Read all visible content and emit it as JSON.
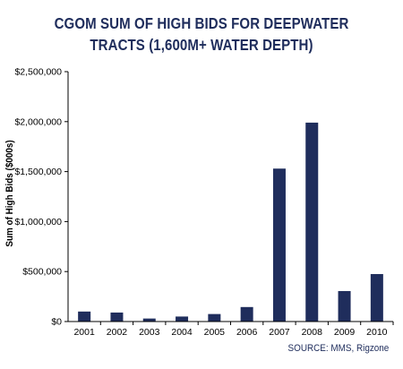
{
  "title_line1": "CGOM SUM OF HIGH BIDS FOR DEEPWATER",
  "title_line2": "TRACTS (1,600M+ WATER DEPTH)",
  "source": "SOURCE:  MMS, Rigzone",
  "colors": {
    "bar": "#1f2d5c",
    "title": "#1f2d5c",
    "axis": "#000000"
  },
  "chart_data": {
    "type": "bar",
    "title": "CGOM SUM OF HIGH BIDS FOR DEEPWATER TRACTS (1,600M+ WATER DEPTH)",
    "xlabel": "",
    "ylabel": "Sum of High Bids ($000s)",
    "categories": [
      "2001",
      "2002",
      "2003",
      "2004",
      "2005",
      "2006",
      "2007",
      "2008",
      "2009",
      "2010"
    ],
    "values": [
      100000,
      90000,
      30000,
      50000,
      75000,
      145000,
      1530000,
      1990000,
      305000,
      475000
    ],
    "ylim": [
      0,
      2500000
    ],
    "yticks": [
      0,
      500000,
      1000000,
      1500000,
      2000000,
      2500000
    ],
    "ytick_labels": [
      "$0",
      "$500,000",
      "$1,000,000",
      "$1,500,000",
      "$2,000,000",
      "$2,500,000"
    ],
    "grid": false,
    "legend": "none"
  }
}
